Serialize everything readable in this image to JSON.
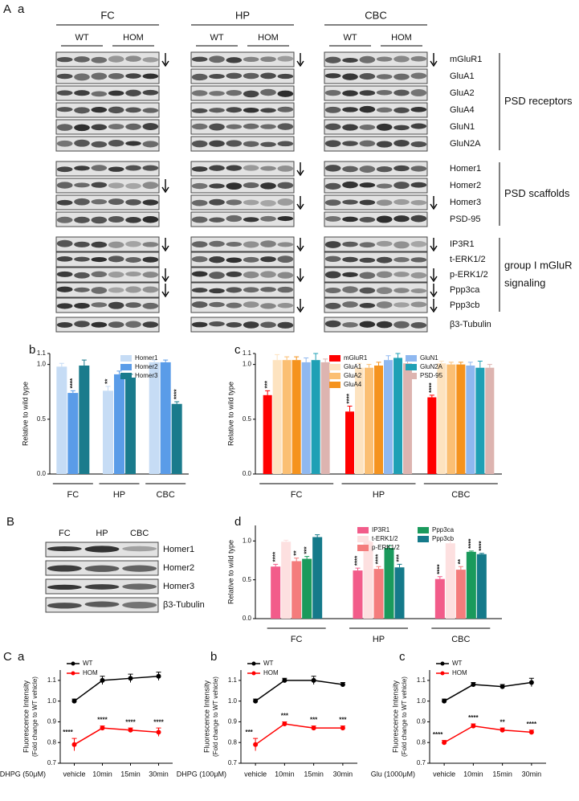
{
  "figure": {
    "panel_A": {
      "label": "A",
      "sublabel": "a",
      "groups": [
        {
          "name": "FC",
          "genotypes": [
            "WT",
            "HOM"
          ]
        },
        {
          "name": "HP",
          "genotypes": [
            "WT",
            "HOM"
          ]
        },
        {
          "name": "CBC",
          "genotypes": [
            "WT",
            "HOM"
          ]
        }
      ],
      "proteins": [
        "mGluR1",
        "GluA1",
        "GluA2",
        "GluA4",
        "GluN1",
        "GluN2A",
        "Homer1",
        "Homer2",
        "Homer3",
        "PSD-95",
        "IP3R1",
        "t-ERK1/2",
        "p-ERK1/2",
        "Ppp3ca",
        "Ppp3cb",
        "β3-Tubulin"
      ],
      "brackets": [
        {
          "lines": [
            "PSD receptors"
          ]
        },
        {
          "lines": [
            "PSD scaffolds"
          ]
        },
        {
          "lines": [
            "group I mGluR",
            "signaling"
          ]
        }
      ]
    },
    "panel_B": {
      "label": "B",
      "lanes": [
        "FC",
        "HP",
        "CBC"
      ],
      "proteins": [
        "Homer1",
        "Homer2",
        "Homer3",
        "β3-Tubulin"
      ]
    },
    "panel_C": {
      "label": "C"
    }
  },
  "chart_data": [
    {
      "type": "bar",
      "panel": "b",
      "ylabel": "Relative to wild type",
      "categories": [
        "FC",
        "HP",
        "CBC"
      ],
      "ylim": [
        0,
        1.1
      ],
      "yticks": [
        {
          "value": 0,
          "label": "0.0"
        },
        0.5,
        {
          "value": 1,
          "label": "1.0"
        },
        1.1
      ],
      "series": [
        {
          "name": "Homer1",
          "color": "#c6dcf5",
          "values": [
            0.98,
            0.76,
            1.02
          ],
          "errors": [
            0.03,
            0.04,
            0.02
          ],
          "significance": [
            null,
            "**",
            null
          ]
        },
        {
          "name": "Homer2",
          "color": "#5a9ce8",
          "values": [
            0.74,
            0.91,
            1.02
          ],
          "errors": [
            0.02,
            0.03,
            0.02
          ],
          "significance": [
            "****",
            null,
            null
          ]
        },
        {
          "name": "Homer3",
          "color": "#1a7b8c",
          "values": [
            0.99,
            0.88,
            0.64
          ],
          "errors": [
            0.05,
            0.03,
            0.02
          ],
          "significance": [
            null,
            null,
            "****"
          ]
        }
      ]
    },
    {
      "type": "bar",
      "panel": "c",
      "ylabel": "Relative to wild type",
      "categories": [
        "FC",
        "HP",
        "CBC"
      ],
      "ylim": [
        0,
        1.1
      ],
      "yticks": [
        {
          "value": 0,
          "label": "0.0"
        },
        0.5,
        {
          "value": 1,
          "label": "1.0"
        },
        1.1
      ],
      "series": [
        {
          "name": "mGluR1",
          "color": "#ff0000",
          "values": [
            0.72,
            0.57,
            0.7
          ],
          "errors": [
            0.04,
            0.05,
            0.02
          ],
          "significance": [
            "***",
            "****",
            "****"
          ]
        },
        {
          "name": "GluA1",
          "color": "#fde3c0",
          "values": [
            1.04,
            0.97,
            1.01
          ],
          "errors": [
            0.05,
            0.04,
            0.02
          ],
          "significance": [
            null,
            null,
            null
          ]
        },
        {
          "name": "GluA2",
          "color": "#fbbf73",
          "values": [
            1.04,
            0.97,
            1.0
          ],
          "errors": [
            0.03,
            0.03,
            0.02
          ],
          "significance": [
            null,
            null,
            null
          ]
        },
        {
          "name": "GluA4",
          "color": "#f5931e",
          "values": [
            1.04,
            0.99,
            1.0
          ],
          "errors": [
            0.03,
            0.03,
            0.02
          ],
          "significance": [
            null,
            null,
            null
          ]
        },
        {
          "name": "GluN1",
          "color": "#8fb8f0",
          "values": [
            1.02,
            1.04,
            0.99
          ],
          "errors": [
            0.04,
            0.04,
            0.03
          ],
          "significance": [
            null,
            null,
            null
          ]
        },
        {
          "name": "GluN2A",
          "color": "#1fa0b5",
          "values": [
            1.04,
            1.06,
            0.97
          ],
          "errors": [
            0.06,
            0.04,
            0.06
          ],
          "significance": [
            null,
            null,
            null
          ]
        },
        {
          "name": "PSD-95",
          "color": "#ddb4b0",
          "values": [
            1.02,
            1.01,
            0.97
          ],
          "errors": [
            0.03,
            0.02,
            0.03
          ],
          "significance": [
            null,
            null,
            null
          ]
        }
      ]
    },
    {
      "type": "bar",
      "panel": "d",
      "ylabel": "Relative to wild type",
      "categories": [
        "FC",
        "HP",
        "CBC"
      ],
      "ylim": [
        0,
        1.2
      ],
      "yticks": [
        {
          "value": 0,
          "label": "0.0"
        },
        0.5,
        {
          "value": 1,
          "label": "1.0"
        }
      ],
      "series": [
        {
          "name": "IP3R1",
          "color": "#f25c8a",
          "values": [
            0.67,
            0.62,
            0.51
          ],
          "errors": [
            0.03,
            0.03,
            0.03
          ],
          "significance": [
            "****",
            "****",
            "****"
          ]
        },
        {
          "name": "t-ERK1/2",
          "color": "#fde0e0",
          "values": [
            0.99,
            0.99,
            0.97
          ],
          "errors": [
            0.02,
            0.01,
            0.04
          ],
          "significance": [
            null,
            null,
            null
          ]
        },
        {
          "name": "p-ERK1/2",
          "color": "#f47c7c",
          "values": [
            0.74,
            0.64,
            0.63
          ],
          "errors": [
            0.04,
            0.03,
            0.04
          ],
          "significance": [
            "**",
            "****",
            "**"
          ]
        },
        {
          "name": "Ppp3ca",
          "color": "#1a9a5c",
          "values": [
            0.77,
            0.91,
            0.86
          ],
          "errors": [
            0.03,
            0.03,
            0.01
          ],
          "significance": [
            "***",
            null,
            "****"
          ]
        },
        {
          "name": "Ppp3cb",
          "color": "#157a8a",
          "values": [
            1.05,
            0.66,
            0.83
          ],
          "errors": [
            0.03,
            0.04,
            0.01
          ],
          "significance": [
            null,
            "***",
            "****"
          ]
        }
      ]
    },
    {
      "type": "line",
      "panel": "a",
      "ylabel": "Fluorescence Intensity",
      "ylabel_note": "(Fold change to WT vehicle)",
      "xlabel": "DHPG (50μM)",
      "categories": [
        "vehicle",
        "10min",
        "15min",
        "30min"
      ],
      "ylim": [
        0.7,
        1.15
      ],
      "yticks": [
        0.7,
        0.8,
        0.9,
        {
          "value": 1,
          "label": "1.0"
        },
        1.1
      ],
      "series": [
        {
          "name": "WT",
          "color": "#000000",
          "values": [
            1.0,
            1.1,
            1.11,
            1.12
          ],
          "errors": [
            0.01,
            0.02,
            0.02,
            0.02
          ],
          "significance": [
            null,
            null,
            null,
            null
          ]
        },
        {
          "name": "HOM",
          "color": "#ff0000",
          "values": [
            0.79,
            0.87,
            0.86,
            0.85
          ],
          "errors": [
            0.03,
            0.01,
            0.01,
            0.02
          ],
          "significance": [
            "****",
            "****",
            "****",
            "****"
          ]
        }
      ]
    },
    {
      "type": "line",
      "panel": "b",
      "ylabel": "Fluorescence Intensity",
      "ylabel_note": "(Fold change to WT vehicle)",
      "xlabel": "DHPG (100μM)",
      "categories": [
        "vehicle",
        "10min",
        "15min",
        "30min"
      ],
      "ylim": [
        0.7,
        1.15
      ],
      "yticks": [
        0.7,
        0.8,
        0.9,
        {
          "value": 1,
          "label": "1.0"
        },
        1.1
      ],
      "series": [
        {
          "name": "WT",
          "color": "#000000",
          "values": [
            1.0,
            1.1,
            1.1,
            1.08
          ],
          "errors": [
            0.01,
            0.01,
            0.02,
            0.01
          ],
          "significance": [
            null,
            null,
            null,
            null
          ]
        },
        {
          "name": "HOM",
          "color": "#ff0000",
          "values": [
            0.79,
            0.89,
            0.87,
            0.87
          ],
          "errors": [
            0.03,
            0.01,
            0.01,
            0.01
          ],
          "significance": [
            "***",
            "***",
            "***",
            "***"
          ]
        }
      ]
    },
    {
      "type": "line",
      "panel": "c",
      "ylabel": "Fluorescence Intensity",
      "ylabel_note": "(Fold change to WT vehicle)",
      "xlabel": "Glu (1000μM)",
      "categories": [
        "vehicle",
        "10min",
        "15min",
        "30min"
      ],
      "ylim": [
        0.7,
        1.15
      ],
      "yticks": [
        0.7,
        0.8,
        0.9,
        {
          "value": 1,
          "label": "1.0"
        },
        1.1
      ],
      "series": [
        {
          "name": "WT",
          "color": "#000000",
          "values": [
            1.0,
            1.08,
            1.07,
            1.09
          ],
          "errors": [
            0.01,
            0.01,
            0.01,
            0.02
          ],
          "significance": [
            null,
            null,
            null,
            null
          ]
        },
        {
          "name": "HOM",
          "color": "#ff0000",
          "values": [
            0.8,
            0.88,
            0.86,
            0.85
          ],
          "errors": [
            0.01,
            0.01,
            0.01,
            0.01
          ],
          "significance": [
            "****",
            "****",
            "**",
            "****"
          ]
        }
      ]
    }
  ]
}
